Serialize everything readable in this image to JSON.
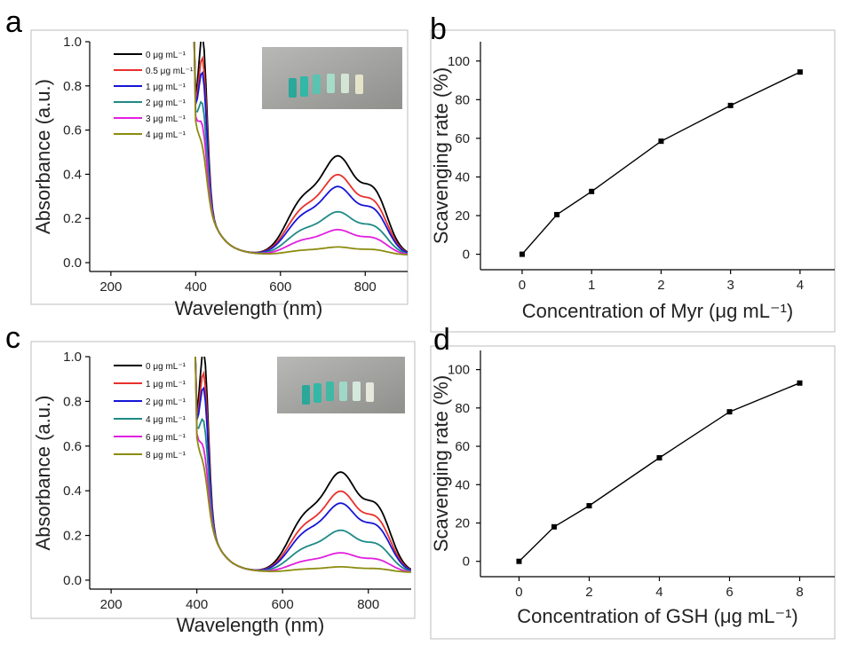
{
  "panels": [
    {
      "letter": "a"
    },
    {
      "letter": "b"
    },
    {
      "letter": "c"
    },
    {
      "letter": "d"
    }
  ],
  "chart_data": [
    {
      "panel": "a",
      "type": "line",
      "xlabel": "Wavelength (nm)",
      "ylabel": "Absorbance (a.u.)",
      "xlim": [
        150,
        900
      ],
      "ylim": [
        -0.04,
        1.0
      ],
      "xticks": [
        200,
        400,
        600,
        800
      ],
      "yticks": [
        0.0,
        0.2,
        0.4,
        0.6,
        0.8,
        1.0
      ],
      "ytick_labels": [
        "0.0",
        "0.2",
        "0.4",
        "0.6",
        "0.8",
        "1.0"
      ],
      "legend_position": "top-left",
      "inset": "cuvette photo",
      "series": [
        {
          "name": "0 μg mL⁻¹",
          "color": "#000000",
          "scale": 1.0
        },
        {
          "name": "0.5 μg mL⁻¹",
          "color": "#e8312d",
          "scale": 0.81
        },
        {
          "name": "1 μg mL⁻¹",
          "color": "#1515d8",
          "scale": 0.69
        },
        {
          "name": "2 μg mL⁻¹",
          "color": "#1f8a86",
          "scale": 0.435
        },
        {
          "name": "3 μg mL⁻¹",
          "color": "#e020e0",
          "scale": 0.255
        },
        {
          "name": "4 μg mL⁻¹",
          "color": "#8c8c10",
          "scale": 0.08
        }
      ]
    },
    {
      "panel": "b",
      "type": "line",
      "xlabel": "Concentration of Myr (μg mL⁻¹)",
      "ylabel": "Scavenging rate (%)",
      "xlim": [
        -0.6,
        4.5
      ],
      "ylim": [
        -8,
        110
      ],
      "xticks": [
        0,
        1,
        2,
        3,
        4
      ],
      "yticks": [
        0,
        20,
        40,
        60,
        80,
        100
      ],
      "x": [
        0,
        0.5,
        1,
        2,
        3,
        4
      ],
      "y": [
        0,
        20.5,
        32.5,
        58.5,
        77,
        94.3
      ]
    },
    {
      "panel": "c",
      "type": "line",
      "xlabel": "Wavelength (nm)",
      "ylabel": "Absorbance (a.u.)",
      "xlim": [
        150,
        900
      ],
      "ylim": [
        -0.04,
        1.0
      ],
      "xticks": [
        200,
        400,
        600,
        800
      ],
      "yticks": [
        0.0,
        0.2,
        0.4,
        0.6,
        0.8,
        1.0
      ],
      "ytick_labels": [
        "0.0",
        "0.2",
        "0.4",
        "0.6",
        "0.8",
        "1.0"
      ],
      "legend_position": "top-left",
      "inset": "cuvette photo",
      "series": [
        {
          "name": "0 μg mL⁻¹",
          "color": "#000000",
          "scale": 1.0
        },
        {
          "name": "1 μg mL⁻¹",
          "color": "#e8312d",
          "scale": 0.81
        },
        {
          "name": "2 μg mL⁻¹",
          "color": "#1515d8",
          "scale": 0.69
        },
        {
          "name": "4 μg mL⁻¹",
          "color": "#1f8a86",
          "scale": 0.42
        },
        {
          "name": "6 μg mL⁻¹",
          "color": "#e020e0",
          "scale": 0.195
        },
        {
          "name": "8 μg mL⁻¹",
          "color": "#8c8c10",
          "scale": 0.055
        }
      ]
    },
    {
      "panel": "d",
      "type": "line",
      "xlabel": "Concentration of GSH (μg mL⁻¹)",
      "ylabel": "Scavenging rate (%)",
      "xlim": [
        -1.1,
        9.0
      ],
      "ylim": [
        -8,
        110
      ],
      "xticks": [
        0,
        2,
        4,
        6,
        8
      ],
      "yticks": [
        0,
        20,
        40,
        60,
        80,
        100
      ],
      "x": [
        0,
        1,
        2,
        4,
        6,
        8
      ],
      "y": [
        0,
        18,
        29,
        54,
        78,
        93
      ]
    }
  ]
}
